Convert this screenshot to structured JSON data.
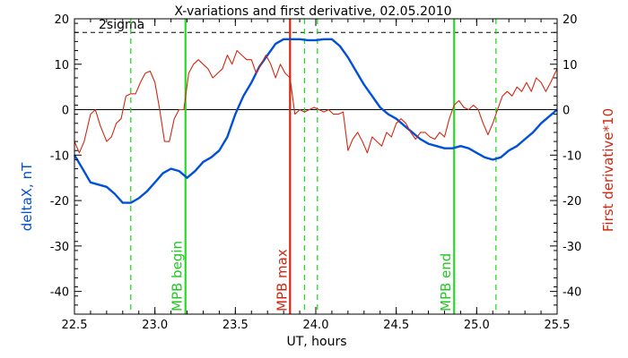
{
  "chart_data": {
    "type": "line",
    "title": "X-variations and first derivative, 02.05.2010",
    "xlabel": "UT, hours",
    "ylabel_left": "deltaX, nT",
    "ylabel_right": "First derivative*10",
    "xlim": [
      22.5,
      25.5
    ],
    "ylim": [
      -45,
      20
    ],
    "x_ticks": [
      "22.5",
      "23.0",
      "23.5",
      "24.0",
      "24.5",
      "25.0",
      "25.5"
    ],
    "y_ticks": [
      "20",
      "10",
      "0",
      "-10",
      "-20",
      "-30",
      "-40"
    ],
    "sigma_label": "2sigma",
    "sigma_level": 17,
    "zero_level": 0,
    "colors": {
      "deltaX": "#0050d8",
      "derivative": "#d02810",
      "mpb": "#22dd22",
      "mpb_max": "#d02810"
    },
    "vertical_lines": [
      {
        "x": 23.19,
        "label": "MPB begin",
        "color": "#22dd22",
        "style": "solid"
      },
      {
        "x": 23.84,
        "label": "MPB max",
        "color": "#d02810",
        "style": "solid"
      },
      {
        "x": 24.86,
        "label": "MPB end",
        "color": "#22dd22",
        "style": "solid"
      },
      {
        "x": 22.85,
        "color": "#22dd22",
        "style": "dashed"
      },
      {
        "x": 23.93,
        "color": "#22dd22",
        "style": "dashed"
      },
      {
        "x": 24.01,
        "color": "#22dd22",
        "style": "dashed"
      },
      {
        "x": 25.12,
        "color": "#22dd22",
        "style": "dashed"
      }
    ],
    "series": [
      {
        "name": "deltaX",
        "x": [
          22.5,
          22.55,
          22.6,
          22.65,
          22.7,
          22.75,
          22.8,
          22.85,
          22.9,
          22.95,
          23.0,
          23.05,
          23.1,
          23.15,
          23.2,
          23.25,
          23.3,
          23.35,
          23.4,
          23.45,
          23.5,
          23.55,
          23.6,
          23.65,
          23.7,
          23.75,
          23.8,
          23.85,
          23.9,
          23.95,
          24.0,
          24.05,
          24.1,
          24.15,
          24.2,
          24.25,
          24.3,
          24.35,
          24.4,
          24.45,
          24.5,
          24.55,
          24.6,
          24.65,
          24.7,
          24.75,
          24.8,
          24.85,
          24.9,
          24.95,
          25.0,
          25.05,
          25.1,
          25.15,
          25.2,
          25.25,
          25.3,
          25.35,
          25.4,
          25.45,
          25.5
        ],
        "values": [
          -10,
          -13,
          -16,
          -16.5,
          -17,
          -18.5,
          -20.5,
          -20.5,
          -19.5,
          -18,
          -16,
          -14,
          -13,
          -13.5,
          -15,
          -13.5,
          -11.5,
          -10.5,
          -9,
          -6,
          -1,
          3,
          6,
          9.5,
          12,
          14.5,
          15.5,
          15.5,
          15.5,
          15.3,
          15.3,
          15.5,
          15.5,
          14,
          11.5,
          8.5,
          5.5,
          3,
          0.5,
          -1,
          -2,
          -3.5,
          -5,
          -6.5,
          -7.5,
          -8,
          -8.5,
          -8.5,
          -8,
          -8.5,
          -9.5,
          -10.5,
          -11,
          -10.5,
          -9,
          -8,
          -6.5,
          -5,
          -3,
          -1.5,
          0
        ]
      },
      {
        "name": "derivative",
        "x": [
          22.5,
          22.53,
          22.56,
          22.6,
          22.63,
          22.66,
          22.7,
          22.73,
          22.76,
          22.79,
          22.82,
          22.85,
          22.88,
          22.91,
          22.94,
          22.97,
          23.0,
          23.03,
          23.06,
          23.09,
          23.12,
          23.15,
          23.18,
          23.21,
          23.24,
          23.27,
          23.3,
          23.33,
          23.36,
          23.39,
          23.42,
          23.45,
          23.48,
          23.51,
          23.54,
          23.57,
          23.6,
          23.63,
          23.66,
          23.69,
          23.72,
          23.75,
          23.78,
          23.81,
          23.84,
          23.87,
          23.9,
          23.93,
          23.96,
          23.99,
          24.02,
          24.05,
          24.08,
          24.11,
          24.14,
          24.17,
          24.2,
          24.23,
          24.26,
          24.29,
          24.32,
          24.35,
          24.38,
          24.41,
          24.44,
          24.47,
          24.5,
          24.53,
          24.56,
          24.59,
          24.62,
          24.65,
          24.68,
          24.71,
          24.74,
          24.77,
          24.8,
          24.83,
          24.86,
          24.89,
          24.92,
          24.95,
          24.98,
          25.01,
          25.04,
          25.07,
          25.1,
          25.13,
          25.16,
          25.19,
          25.22,
          25.25,
          25.28,
          25.31,
          25.34,
          25.37,
          25.4,
          25.43,
          25.46,
          25.5
        ],
        "values": [
          -7,
          -9.5,
          -7,
          -1,
          0,
          -3.5,
          -7,
          -6,
          -3,
          -2,
          3,
          3.5,
          3.5,
          6,
          8,
          8.5,
          6,
          0,
          -7,
          -7,
          -2,
          0,
          0,
          8,
          10,
          11,
          10,
          9,
          7,
          8,
          9,
          12,
          10,
          13,
          12,
          11,
          11,
          8,
          10,
          12,
          10,
          7,
          10,
          8,
          7,
          -1,
          0,
          -0.5,
          0,
          0.5,
          0,
          -0.5,
          0,
          -1,
          -1,
          -0.5,
          -9,
          -6.5,
          -5,
          -7,
          -9.5,
          -6,
          -7,
          -8,
          -5,
          -6,
          -3,
          -2,
          -3,
          -5,
          -6.5,
          -5,
          -5,
          -6,
          -6.5,
          -5,
          -6,
          -2,
          1,
          2,
          0.5,
          0,
          1,
          0,
          -3,
          -5.5,
          -3,
          0,
          3,
          4,
          3,
          5,
          4,
          6,
          4,
          7,
          6,
          4,
          6,
          9
        ]
      }
    ]
  }
}
